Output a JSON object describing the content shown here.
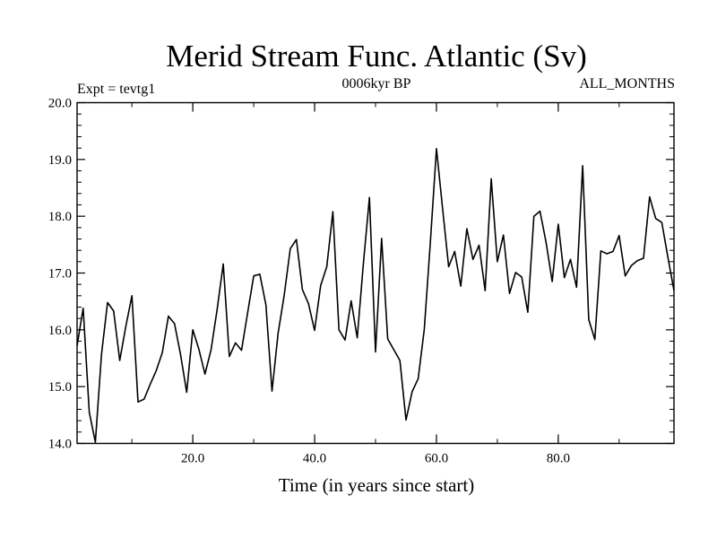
{
  "chart_data": {
    "type": "line",
    "title": "Merid Stream Func. Atlantic (Sv)",
    "subtitle_left": "Expt = tevtg1",
    "subtitle_center": "0006kyr BP",
    "subtitle_right": "ALL_MONTHS",
    "xlabel": "Time (in years since start)",
    "ylabel": "",
    "xlim": [
      1,
      99
    ],
    "ylim": [
      14.0,
      20.0
    ],
    "xticks": [
      20,
      40,
      60,
      80
    ],
    "xtick_labels": [
      "20.0",
      "40.0",
      "60.0",
      "80.0"
    ],
    "yticks": [
      14,
      15,
      16,
      17,
      18,
      19,
      20
    ],
    "ytick_labels": [
      "14.0",
      "15.0",
      "16.0",
      "17.0",
      "18.0",
      "19.0",
      "20.0"
    ],
    "series": [
      {
        "name": "Merid Stream Func. Atlantic",
        "x": [
          1,
          2,
          3,
          4,
          5,
          6,
          7,
          8,
          9,
          10,
          11,
          12,
          13,
          14,
          15,
          16,
          17,
          18,
          19,
          20,
          21,
          22,
          23,
          24,
          25,
          26,
          27,
          28,
          29,
          30,
          31,
          32,
          33,
          34,
          35,
          36,
          37,
          38,
          39,
          40,
          41,
          42,
          43,
          44,
          45,
          46,
          47,
          48,
          49,
          50,
          51,
          52,
          53,
          54,
          55,
          56,
          57,
          58,
          59,
          60,
          61,
          62,
          63,
          64,
          65,
          66,
          67,
          68,
          69,
          70,
          71,
          72,
          73,
          74,
          75,
          76,
          77,
          78,
          79,
          80,
          81,
          82,
          83,
          84,
          85,
          86,
          87,
          88,
          89,
          90,
          91,
          92,
          93,
          94,
          95,
          96,
          97,
          98,
          99
        ],
        "values": [
          15.72,
          16.38,
          14.55,
          14.02,
          15.56,
          16.48,
          16.33,
          15.46,
          16.06,
          16.6,
          14.73,
          14.78,
          15.04,
          15.28,
          15.6,
          16.24,
          16.11,
          15.56,
          14.9,
          16.0,
          15.66,
          15.22,
          15.65,
          16.36,
          17.16,
          15.53,
          15.77,
          15.64,
          16.3,
          16.95,
          16.98,
          16.44,
          14.92,
          15.94,
          16.61,
          17.43,
          17.59,
          16.71,
          16.46,
          15.99,
          16.78,
          17.11,
          18.08,
          16.0,
          15.82,
          16.51,
          15.86,
          17.16,
          18.33,
          15.61,
          17.61,
          15.84,
          15.65,
          15.46,
          14.41,
          14.91,
          15.14,
          16.01,
          17.55,
          19.19,
          18.14,
          17.11,
          17.38,
          16.77,
          17.78,
          17.24,
          17.49,
          16.69,
          18.66,
          17.2,
          17.67,
          16.64,
          17.01,
          16.93,
          16.31,
          18.0,
          18.09,
          17.54,
          16.85,
          17.86,
          16.92,
          17.24,
          16.75,
          18.89,
          16.18,
          15.83,
          17.39,
          17.34,
          17.38,
          17.66,
          16.95,
          17.13,
          17.22,
          17.26,
          18.34,
          17.96,
          17.89,
          17.28,
          16.69
        ]
      }
    ]
  },
  "colors": {
    "line": "#000000",
    "frame": "#000000",
    "background": "#ffffff"
  }
}
